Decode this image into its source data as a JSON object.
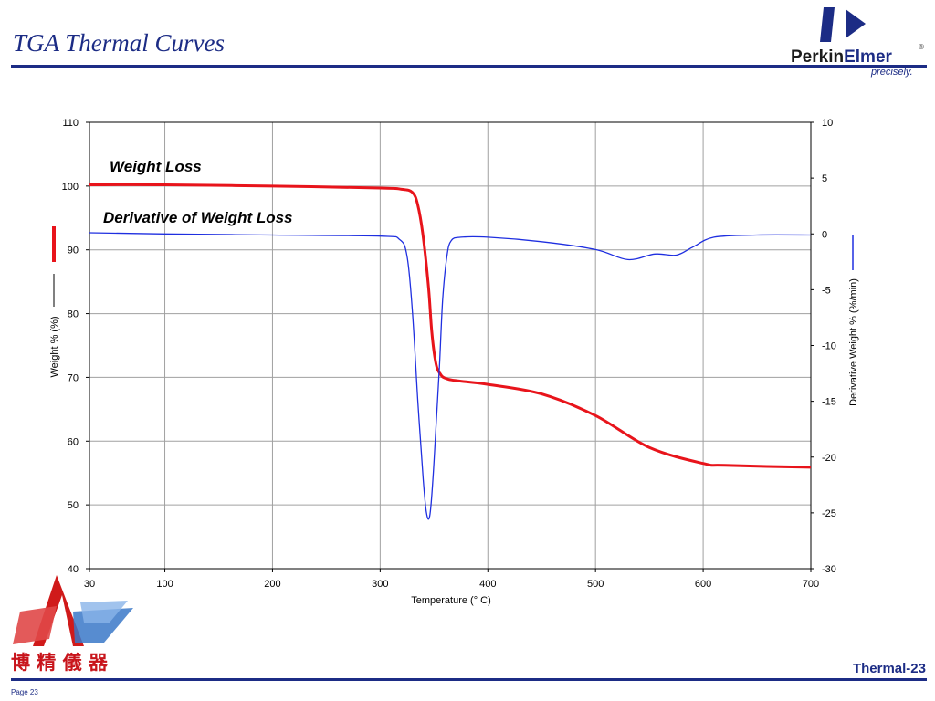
{
  "slide": {
    "title": "TGA Thermal Curves",
    "footer_id": "Thermal-23",
    "page_label": "Page 23",
    "brand_logo": {
      "name": "PerkinElmer",
      "tagline": "precisely."
    },
    "distributor_logo": {
      "text": "博 精 儀 器"
    }
  },
  "colors": {
    "weight": "#e8141b",
    "derivative": "#1f2fe0",
    "accent": "#1c2c85",
    "grid": "#a0a0a0"
  },
  "chart_data": {
    "type": "line",
    "xlabel": "Temperature (° C)",
    "ylabel": "Weight % (%)",
    "y2label": "Derivative Weight % (%/min)",
    "xlim": [
      30,
      700
    ],
    "ylim": [
      40,
      110
    ],
    "y2lim": [
      -30,
      10
    ],
    "xticks": [
      30,
      100,
      200,
      300,
      400,
      500,
      600,
      700
    ],
    "yticks": [
      40,
      50,
      60,
      70,
      80,
      90,
      100,
      110
    ],
    "y2ticks": [
      -30,
      -25,
      -20,
      -15,
      -10,
      -5,
      0,
      5,
      10
    ],
    "grid": true,
    "annotations": [
      "Weight Loss",
      "Derivative of Weight Loss"
    ],
    "series": [
      {
        "name": "Weight Loss",
        "axis": "left",
        "color": "#e8141b",
        "x": [
          30,
          100,
          200,
          300,
          320,
          330,
          335,
          340,
          345,
          348,
          352,
          356,
          360,
          370,
          400,
          450,
          500,
          550,
          600,
          620,
          700
        ],
        "y": [
          100.2,
          100.2,
          100.0,
          99.7,
          99.5,
          99.0,
          97.0,
          92.0,
          84.0,
          77.0,
          72.0,
          70.5,
          69.9,
          69.5,
          68.9,
          67.4,
          64.0,
          59.0,
          56.5,
          56.2,
          55.9
        ]
      },
      {
        "name": "Derivative of Weight Loss",
        "axis": "right",
        "color": "#1f2fe0",
        "x": [
          30,
          100,
          200,
          300,
          318,
          325,
          330,
          335,
          340,
          343,
          346,
          349,
          352,
          355,
          358,
          362,
          366,
          375,
          400,
          450,
          500,
          530,
          555,
          575,
          590,
          610,
          650,
          700
        ],
        "y": [
          0.1,
          0.0,
          -0.1,
          -0.2,
          -0.5,
          -2.0,
          -7.0,
          -15.0,
          -22.0,
          -25.0,
          -25.3,
          -22.0,
          -17.0,
          -12.0,
          -6.0,
          -2.0,
          -0.6,
          -0.3,
          -0.3,
          -0.7,
          -1.4,
          -2.3,
          -1.8,
          -1.9,
          -1.2,
          -0.3,
          -0.1,
          -0.1
        ]
      }
    ]
  }
}
